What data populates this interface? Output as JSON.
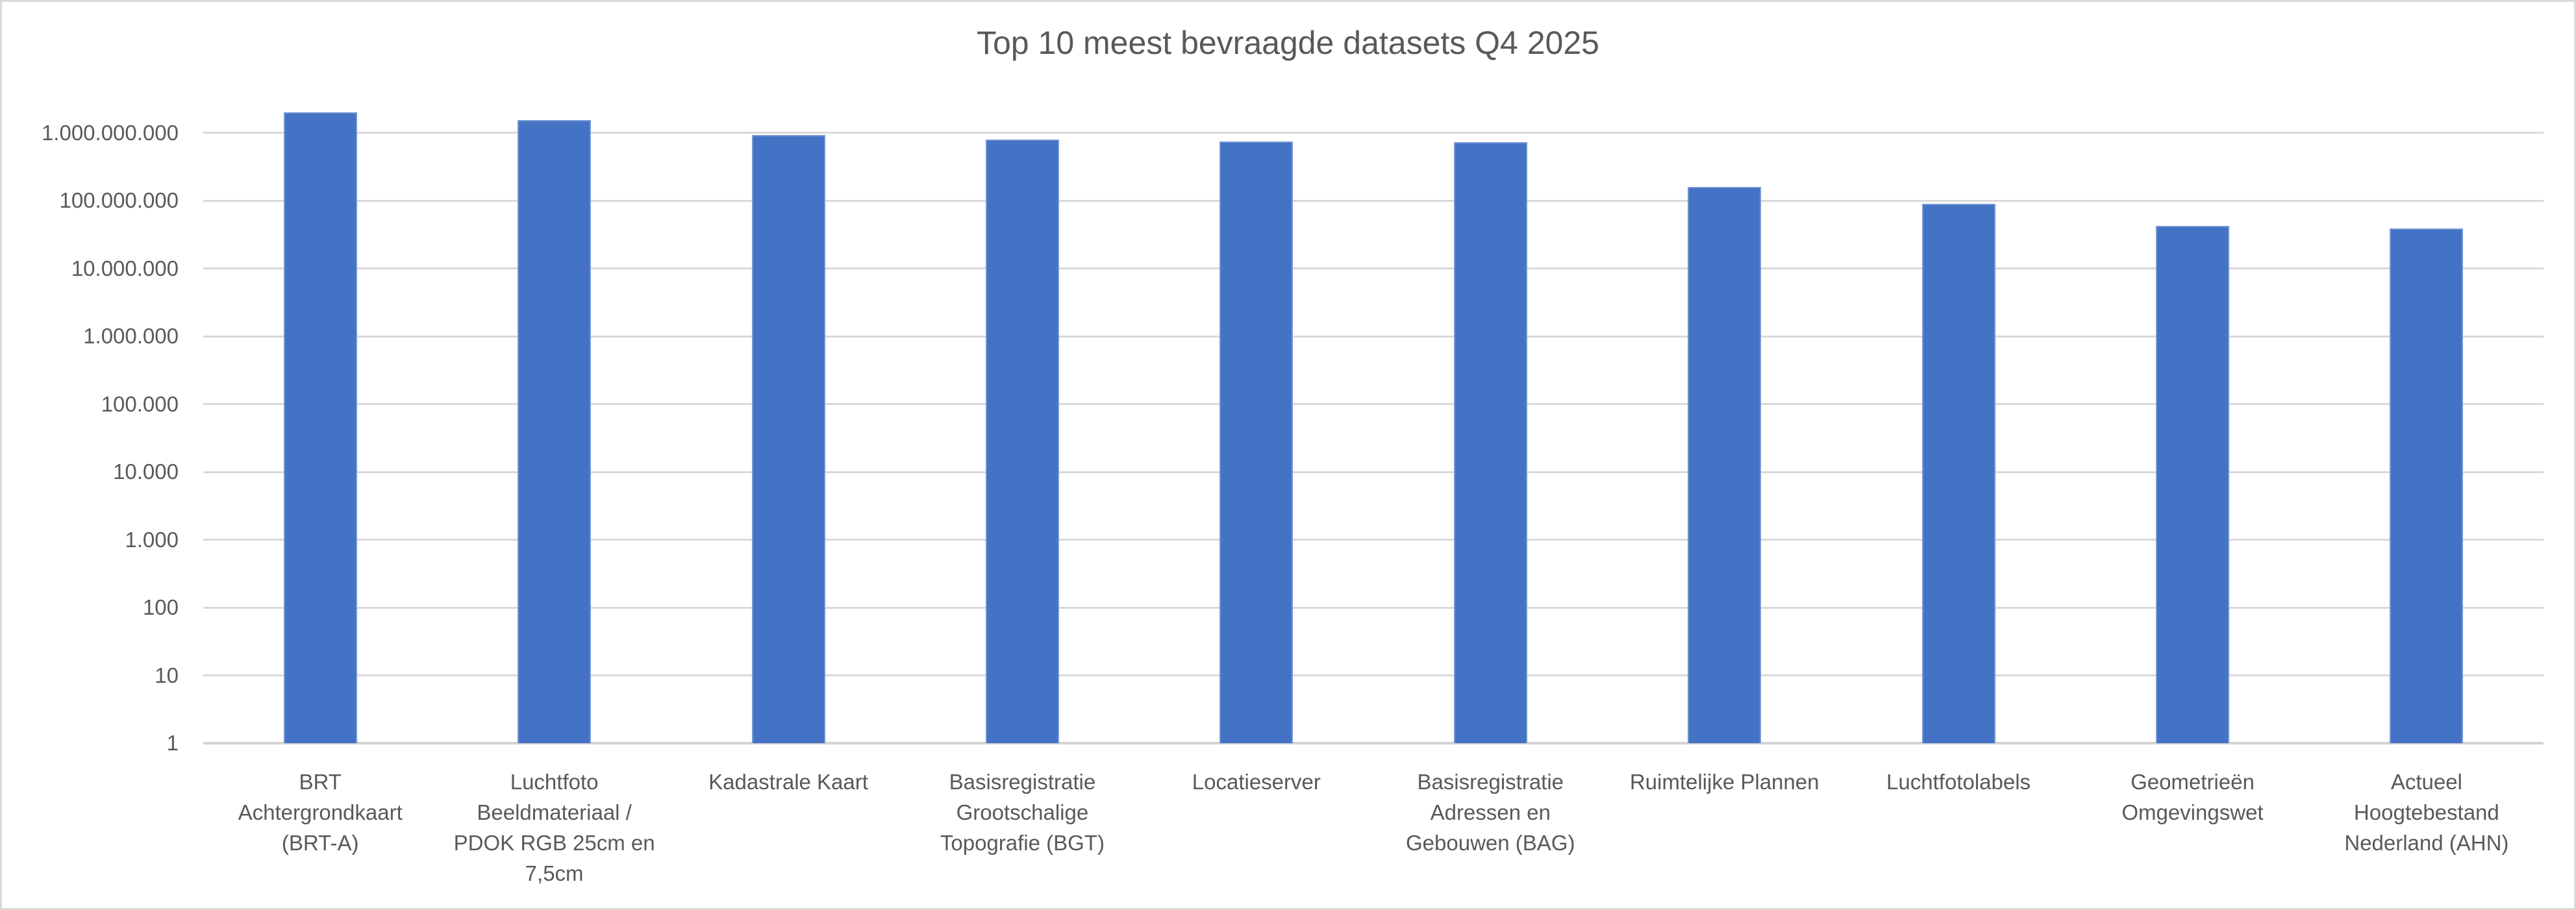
{
  "chart_data": {
    "type": "bar",
    "title": "Top 10 meest bevraagde datasets Q4 2025",
    "categories": [
      "BRT Achtergrondkaart (BRT-A)",
      "Luchtfoto Beeldmateriaal / PDOK RGB 25cm en 7,5cm",
      "Kadastrale Kaart",
      "Basisregistratie Grootschalige Topografie (BGT)",
      "Locatieserver",
      "Basisregistratie Adressen en Gebouwen (BAG)",
      "Ruimtelijke Plannen",
      "Luchtfotolabels",
      "Geometrieën Omgevingswet",
      "Actueel Hoogtebestand Nederland (AHN)"
    ],
    "category_lines": [
      [
        "BRT",
        "Achtergrondkaart",
        "(BRT-A)"
      ],
      [
        "Luchtfoto",
        "Beeldmateriaal /",
        "PDOK RGB 25cm en",
        "7,5cm"
      ],
      [
        "Kadastrale Kaart"
      ],
      [
        "Basisregistratie",
        "Grootschalige",
        "Topografie (BGT)"
      ],
      [
        "Locatieserver"
      ],
      [
        "Basisregistratie",
        "Adressen en",
        "Gebouwen (BAG)"
      ],
      [
        "Ruimtelijke Plannen"
      ],
      [
        "Luchtfotolabels"
      ],
      [
        "Geometrieën",
        "Omgevingswet"
      ],
      [
        "Actueel",
        "Hoogtebestand",
        "Nederland (AHN)"
      ]
    ],
    "values": [
      2000000000,
      1540000000,
      935000000,
      800000000,
      740000000,
      730000000,
      160000000,
      90000000,
      42000000,
      39000000
    ],
    "y_scale": "log",
    "ylim": [
      1,
      2500000000
    ],
    "y_ticks": [
      {
        "value": 1,
        "label": "1"
      },
      {
        "value": 10,
        "label": "10"
      },
      {
        "value": 100,
        "label": "100"
      },
      {
        "value": 1000,
        "label": "1.000"
      },
      {
        "value": 10000,
        "label": "10.000"
      },
      {
        "value": 100000,
        "label": "100.000"
      },
      {
        "value": 1000000,
        "label": "1.000.000"
      },
      {
        "value": 10000000,
        "label": "10.000.000"
      },
      {
        "value": 100000000,
        "label": "100.000.000"
      },
      {
        "value": 1000000000,
        "label": "1.000.000.000"
      }
    ],
    "grid": true,
    "legend": false
  },
  "colors": {
    "bar_fill": "#4472C4",
    "bar_edge": "#7598D2",
    "gridline": "#D9D9D9",
    "axis_line": "#D3D3D3",
    "text": "#595959",
    "background": "#FFFFFF",
    "border": "#D9D9D9"
  }
}
